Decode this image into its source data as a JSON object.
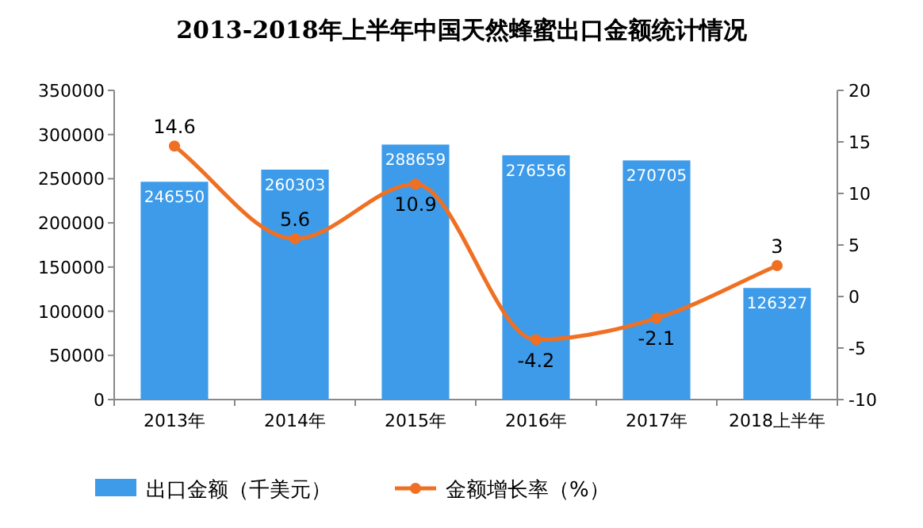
{
  "chart_data": {
    "type": "bar",
    "title": "2013-2018年上半年中国天然蜂蜜出口金额统计情况",
    "categories": [
      "2013年",
      "2014年",
      "2015年",
      "2016年",
      "2017年",
      "2018上半年"
    ],
    "series": [
      {
        "name": "出口金额（千美元）",
        "color": "#3d9be9",
        "values": [
          246550,
          260303,
          288659,
          276556,
          270705,
          126327
        ]
      },
      {
        "name": "金额增长率（%）",
        "type": "line",
        "axis": "y2",
        "color": "#f07023",
        "marker": "circle",
        "values": [
          14.6,
          5.6,
          10.9,
          -4.2,
          -2.1,
          3
        ]
      }
    ],
    "ylim": [
      0,
      350000
    ],
    "yticks": [
      0,
      50000,
      100000,
      150000,
      200000,
      250000,
      300000,
      350000
    ],
    "y2lim": [
      -10,
      20
    ],
    "y2ticks": [
      -10,
      -5,
      0,
      5,
      10,
      15,
      20
    ],
    "data_labels": true,
    "legend": "bottom"
  }
}
